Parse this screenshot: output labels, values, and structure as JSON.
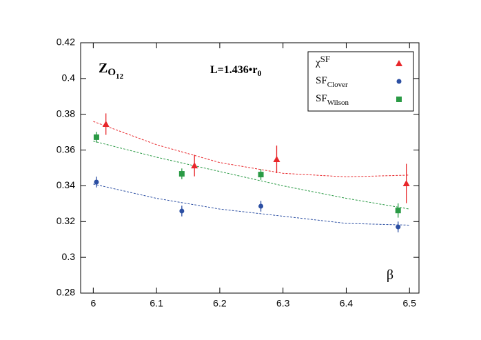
{
  "chart_data": {
    "type": "scatter",
    "annotations": [
      {
        "text": "Z",
        "sub": "O",
        "subsub": "12"
      },
      {
        "text": "L=1.436•r",
        "sub": "0"
      }
    ],
    "xlabel": "β",
    "xlim": [
      5.98,
      6.515
    ],
    "ylim": [
      0.28,
      0.42
    ],
    "xticks": [
      6,
      6.1,
      6.2,
      6.3,
      6.4,
      6.5
    ],
    "yticks": [
      0.28,
      0.3,
      0.32,
      0.34,
      0.36,
      0.38,
      0.4,
      0.42
    ],
    "legend": "upper right",
    "series": [
      {
        "name": "χ",
        "name_sup": "SF",
        "color": "#e8262a",
        "marker": "triangle",
        "x": [
          6.02,
          6.16,
          6.29,
          6.495
        ],
        "values": [
          0.3745,
          0.3513,
          0.3548,
          0.3413
        ],
        "errors": [
          0.006,
          0.006,
          0.0077,
          0.011
        ]
      },
      {
        "name": "SF",
        "name_sub": "Clover",
        "color": "#2c4fa3",
        "marker": "circle",
        "x": [
          6.005,
          6.14,
          6.265,
          6.482
        ],
        "values": [
          0.3421,
          0.3259,
          0.3286,
          0.317
        ],
        "errors": [
          0.003,
          0.003,
          0.003,
          0.003
        ]
      },
      {
        "name": "SF",
        "name_sub": "Wilson",
        "color": "#2a9a45",
        "marker": "square",
        "x": [
          6.005,
          6.14,
          6.265,
          6.482
        ],
        "values": [
          0.3672,
          0.3467,
          0.3463,
          0.3262
        ],
        "errors": [
          0.003,
          0.003,
          0.003,
          0.004
        ]
      }
    ],
    "fits": [
      {
        "color": "#e8262a",
        "x": [
          6.0,
          6.1,
          6.2,
          6.3,
          6.4,
          6.5
        ],
        "values": [
          0.376,
          0.363,
          0.353,
          0.347,
          0.345,
          0.346
        ]
      },
      {
        "color": "#2c4fa3",
        "x": [
          6.0,
          6.1,
          6.2,
          6.3,
          6.4,
          6.5
        ],
        "values": [
          0.341,
          0.333,
          0.327,
          0.323,
          0.319,
          0.318
        ]
      },
      {
        "color": "#2a9a45",
        "x": [
          6.0,
          6.1,
          6.2,
          6.3,
          6.4,
          6.5
        ],
        "values": [
          0.365,
          0.356,
          0.348,
          0.34,
          0.333,
          0.327
        ]
      }
    ]
  }
}
